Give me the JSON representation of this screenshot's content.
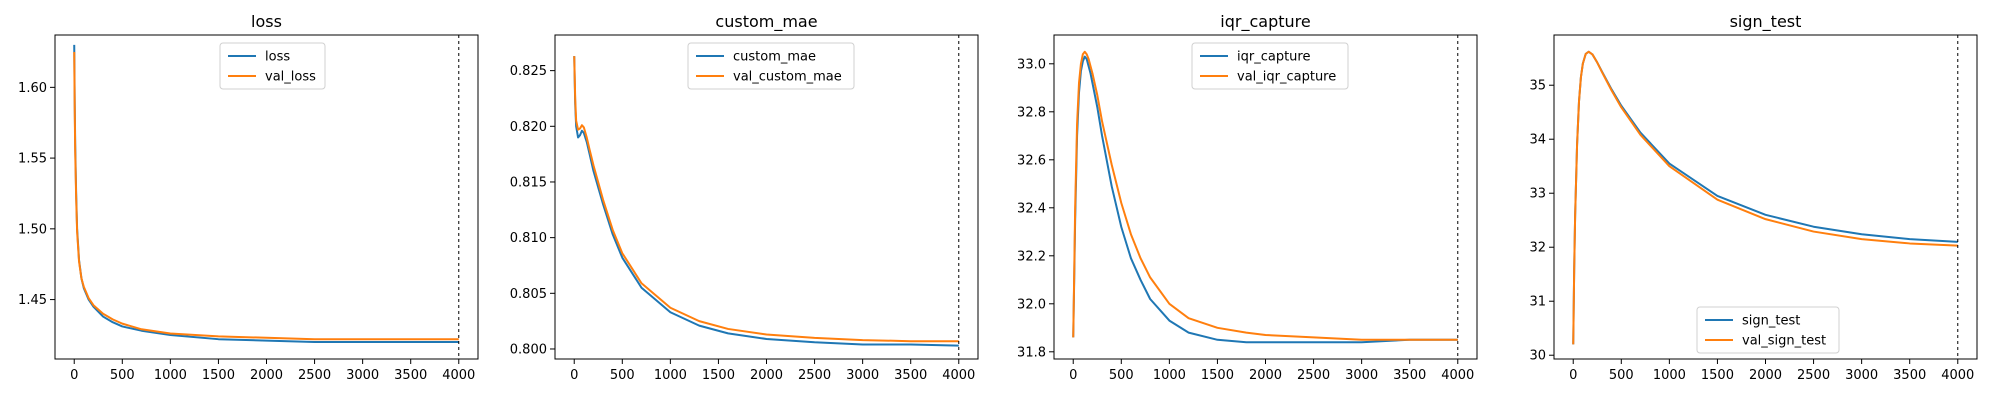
{
  "chart_data": [
    {
      "type": "line",
      "title": "loss",
      "xlim": [
        -200,
        4200
      ],
      "ylim": [
        1.408,
        1.637
      ],
      "xticks": [
        "0",
        "500",
        "1000",
        "1500",
        "2000",
        "2500",
        "3000",
        "3500",
        "4000"
      ],
      "yticks": [
        "1.45",
        "1.50",
        "1.55",
        "1.60"
      ],
      "vline_x": 4000,
      "legend_position": "upper center",
      "series": [
        {
          "name": "loss",
          "color": "#1f77b4",
          "x": [
            0,
            5,
            10,
            20,
            30,
            50,
            75,
            100,
            150,
            200,
            300,
            400,
            500,
            700,
            1000,
            1500,
            2000,
            2500,
            3000,
            3500,
            4000
          ],
          "y": [
            1.63,
            1.59,
            1.56,
            1.525,
            1.5,
            1.478,
            1.465,
            1.458,
            1.45,
            1.445,
            1.438,
            1.434,
            1.431,
            1.428,
            1.425,
            1.422,
            1.421,
            1.42,
            1.42,
            1.42,
            1.42
          ]
        },
        {
          "name": "val_loss",
          "color": "#ff7f0e",
          "x": [
            0,
            5,
            10,
            20,
            30,
            50,
            75,
            100,
            150,
            200,
            300,
            400,
            500,
            700,
            1000,
            1500,
            2000,
            2500,
            3000,
            3500,
            4000
          ],
          "y": [
            1.625,
            1.585,
            1.555,
            1.522,
            1.498,
            1.477,
            1.465,
            1.459,
            1.451,
            1.446,
            1.44,
            1.436,
            1.433,
            1.429,
            1.426,
            1.424,
            1.423,
            1.422,
            1.422,
            1.422,
            1.422
          ]
        }
      ]
    },
    {
      "type": "line",
      "title": "custom_mae",
      "xlim": [
        -200,
        4200
      ],
      "ylim": [
        0.7991,
        0.8282
      ],
      "xticks": [
        "0",
        "500",
        "1000",
        "1500",
        "2000",
        "2500",
        "3000",
        "3500",
        "4000"
      ],
      "yticks": [
        "0.800",
        "0.805",
        "0.810",
        "0.815",
        "0.820",
        "0.825"
      ],
      "vline_x": 4000,
      "legend_position": "upper center",
      "series": [
        {
          "name": "custom_mae",
          "color": "#1f77b4",
          "x": [
            0,
            10,
            20,
            40,
            60,
            80,
            100,
            130,
            160,
            200,
            300,
            400,
            500,
            700,
            1000,
            1300,
            1600,
            2000,
            2500,
            3000,
            3500,
            4000
          ],
          "y": [
            0.8263,
            0.822,
            0.82,
            0.819,
            0.8192,
            0.8196,
            0.8194,
            0.8186,
            0.8175,
            0.816,
            0.813,
            0.8103,
            0.8082,
            0.8055,
            0.8033,
            0.8021,
            0.8014,
            0.8009,
            0.8006,
            0.8004,
            0.8004,
            0.8003
          ]
        },
        {
          "name": "val_custom_mae",
          "color": "#ff7f0e",
          "x": [
            0,
            10,
            20,
            40,
            60,
            80,
            100,
            130,
            160,
            200,
            300,
            400,
            500,
            700,
            1000,
            1300,
            1600,
            2000,
            2500,
            3000,
            3500,
            4000
          ],
          "y": [
            0.8263,
            0.8225,
            0.8205,
            0.8197,
            0.8198,
            0.8201,
            0.8199,
            0.819,
            0.8179,
            0.8165,
            0.8134,
            0.8107,
            0.8086,
            0.8059,
            0.8037,
            0.8025,
            0.8018,
            0.8013,
            0.801,
            0.8008,
            0.8007,
            0.8007
          ]
        }
      ]
    },
    {
      "type": "line",
      "title": "iqr_capture",
      "xlim": [
        -200,
        4200
      ],
      "ylim": [
        31.77,
        33.12
      ],
      "xticks": [
        "0",
        "500",
        "1000",
        "1500",
        "2000",
        "2500",
        "3000",
        "3500",
        "4000"
      ],
      "yticks": [
        "31.8",
        "32.0",
        "32.2",
        "32.4",
        "32.6",
        "32.8",
        "33.0"
      ],
      "vline_x": 4000,
      "legend_position": "upper center",
      "series": [
        {
          "name": "iqr_capture",
          "color": "#1f77b4",
          "x": [
            0,
            10,
            20,
            40,
            60,
            80,
            100,
            120,
            140,
            160,
            180,
            200,
            250,
            300,
            400,
            500,
            600,
            700,
            800,
            1000,
            1200,
            1500,
            1800,
            2000,
            2500,
            3000,
            3500,
            4000
          ],
          "y": [
            31.86,
            32.1,
            32.35,
            32.7,
            32.88,
            32.97,
            33.01,
            33.03,
            33.02,
            32.99,
            32.96,
            32.92,
            32.82,
            32.7,
            32.49,
            32.32,
            32.19,
            32.1,
            32.02,
            31.93,
            31.88,
            31.85,
            31.84,
            31.84,
            31.84,
            31.84,
            31.85,
            31.85
          ]
        },
        {
          "name": "val_iqr_capture",
          "color": "#ff7f0e",
          "x": [
            0,
            10,
            20,
            40,
            60,
            80,
            100,
            120,
            140,
            160,
            180,
            200,
            250,
            300,
            400,
            500,
            600,
            700,
            800,
            1000,
            1200,
            1500,
            1800,
            2000,
            2500,
            3000,
            3500,
            4000
          ],
          "y": [
            31.86,
            32.12,
            32.4,
            32.75,
            32.92,
            33.0,
            33.04,
            33.05,
            33.04,
            33.02,
            32.99,
            32.96,
            32.87,
            32.76,
            32.58,
            32.42,
            32.29,
            32.19,
            32.11,
            32.0,
            31.94,
            31.9,
            31.88,
            31.87,
            31.86,
            31.85,
            31.85,
            31.85
          ]
        }
      ]
    },
    {
      "type": "line",
      "title": "sign_test",
      "xlim": [
        -200,
        4200
      ],
      "ylim": [
        29.93,
        35.93
      ],
      "xticks": [
        "0",
        "500",
        "1000",
        "1500",
        "2000",
        "2500",
        "3000",
        "3500",
        "4000"
      ],
      "yticks": [
        "30",
        "31",
        "32",
        "33",
        "34",
        "35"
      ],
      "vline_x": 4000,
      "legend_position": "lower center",
      "series": [
        {
          "name": "sign_test",
          "color": "#1f77b4",
          "x": [
            0,
            10,
            20,
            40,
            60,
            80,
            100,
            130,
            160,
            200,
            250,
            300,
            400,
            500,
            700,
            1000,
            1500,
            2000,
            2500,
            3000,
            3500,
            4000
          ],
          "y": [
            30.2,
            31.6,
            32.6,
            33.9,
            34.7,
            35.15,
            35.4,
            35.58,
            35.62,
            35.57,
            35.42,
            35.25,
            34.92,
            34.62,
            34.12,
            33.55,
            32.95,
            32.6,
            32.38,
            32.24,
            32.15,
            32.1
          ]
        },
        {
          "name": "val_sign_test",
          "color": "#ff7f0e",
          "x": [
            0,
            10,
            20,
            40,
            60,
            80,
            100,
            130,
            160,
            200,
            250,
            300,
            400,
            500,
            700,
            1000,
            1500,
            2000,
            2500,
            3000,
            3500,
            4000
          ],
          "y": [
            30.2,
            31.6,
            32.6,
            33.9,
            34.7,
            35.15,
            35.4,
            35.58,
            35.62,
            35.57,
            35.42,
            35.24,
            34.9,
            34.59,
            34.08,
            33.5,
            32.88,
            32.52,
            32.29,
            32.15,
            32.07,
            32.03
          ]
        }
      ]
    }
  ]
}
